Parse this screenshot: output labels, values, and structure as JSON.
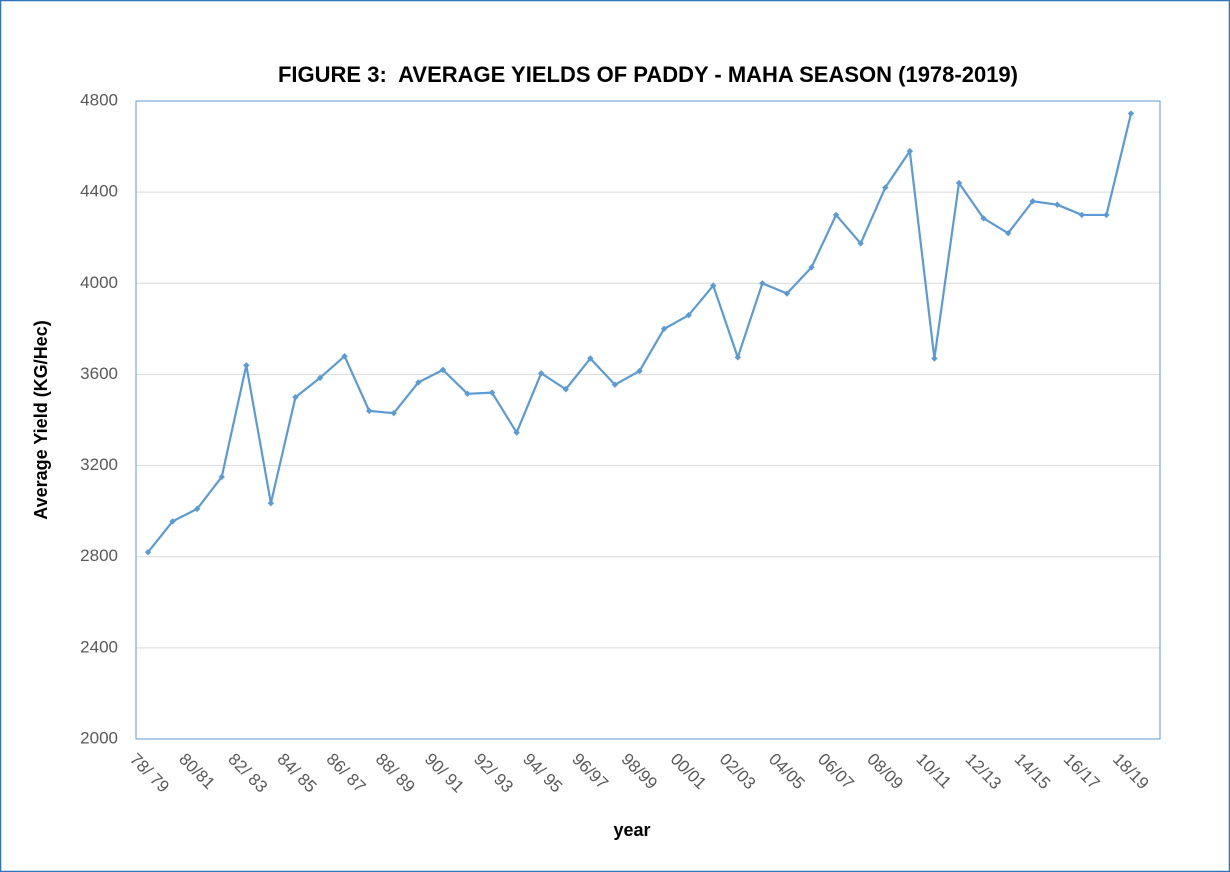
{
  "chart_data": {
    "type": "line",
    "title": "FIGURE 3:  AVERAGE YIELDS OF PADDY - MAHA SEASON (1978-2019)",
    "x_label": "year",
    "y_label": "Average Yield (KG/Hec)",
    "categories": [
      "78/ 79",
      null,
      "80/81",
      null,
      "82/ 83",
      null,
      "84/ 85",
      null,
      "86/ 87",
      null,
      "88/ 89",
      null,
      "90/ 91",
      null,
      "92/ 93",
      null,
      "94/ 95",
      null,
      "96/97",
      null,
      "98/99",
      null,
      "00/01",
      null,
      "02/03",
      null,
      "04/05",
      null,
      "06/07",
      null,
      "08/09",
      null,
      "10/11",
      null,
      "12/13",
      null,
      "14/15",
      null,
      "16/17",
      null,
      "18/19"
    ],
    "values": [
      2820,
      2955,
      3010,
      3150,
      3640,
      3035,
      3500,
      3585,
      3680,
      3440,
      3430,
      3565,
      3620,
      3515,
      3520,
      3345,
      3605,
      3535,
      3670,
      3555,
      3615,
      3800,
      3860,
      3990,
      3675,
      4000,
      3955,
      4070,
      4300,
      4175,
      4420,
      4580,
      3670,
      4440,
      4285,
      4220,
      4360,
      4345,
      4300,
      4300,
      4745
    ],
    "color": "#5b9bd5",
    "ylim": [
      2000,
      4800
    ],
    "yticks": [
      2000,
      2400,
      2800,
      3200,
      3600,
      4000,
      4400,
      4800
    ],
    "grid": true
  }
}
